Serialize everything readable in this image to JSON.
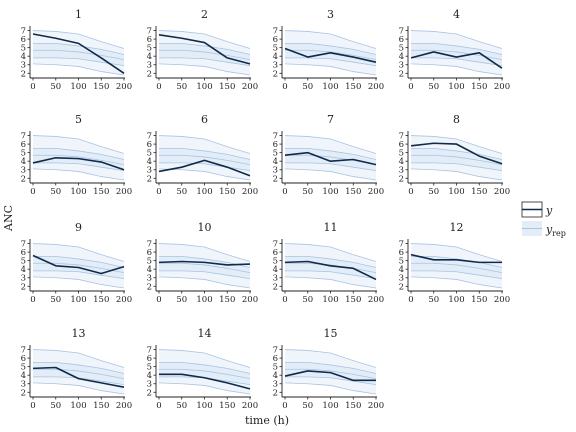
{
  "chart_data": {
    "type": "line",
    "xlabel": "time (h)",
    "ylabel": "ANC",
    "x_ticks": [
      0,
      50,
      100,
      150,
      200
    ],
    "y_ticks": [
      2,
      3,
      4,
      5,
      6,
      7
    ],
    "xlim": [
      0,
      200
    ],
    "ylim": [
      1.8,
      7.3
    ],
    "legend": {
      "position": "right",
      "y_label": "y",
      "rep_label_main": "y",
      "rep_label_sub": "rep"
    },
    "colors": {
      "y_line": "#0f2a4a",
      "band_fill": "#e3edf8",
      "band_line": "#a9c4e2",
      "axis": "#222222"
    },
    "panels": [
      {
        "id": "1",
        "times": [
          0,
          50,
          100,
          150,
          200
        ],
        "y": [
          6.6,
          6.1,
          5.5,
          3.8,
          2.0
        ]
      },
      {
        "id": "2",
        "times": [
          0,
          50,
          100,
          150,
          200
        ],
        "y": [
          6.5,
          6.1,
          5.6,
          3.8,
          3.1
        ]
      },
      {
        "id": "3",
        "times": [
          0,
          50,
          100,
          150,
          200
        ],
        "y": [
          4.9,
          3.9,
          4.4,
          3.9,
          3.3
        ]
      },
      {
        "id": "4",
        "times": [
          0,
          50,
          100,
          150,
          200
        ],
        "y": [
          3.8,
          4.5,
          3.9,
          4.4,
          2.6
        ]
      },
      {
        "id": "5",
        "times": [
          0,
          50,
          100,
          150,
          200
        ],
        "y": [
          3.8,
          4.4,
          4.3,
          3.9,
          3.0
        ]
      },
      {
        "id": "6",
        "times": [
          0,
          50,
          100,
          150,
          200
        ],
        "y": [
          2.8,
          3.3,
          4.1,
          3.3,
          2.3
        ]
      },
      {
        "id": "7",
        "times": [
          0,
          50,
          100,
          150,
          200
        ],
        "y": [
          4.7,
          5.0,
          4.0,
          4.2,
          3.6
        ]
      },
      {
        "id": "8",
        "times": [
          0,
          50,
          100,
          150,
          200
        ],
        "y": [
          5.8,
          6.1,
          6.0,
          4.6,
          3.7
        ]
      },
      {
        "id": "9",
        "times": [
          0,
          50,
          100,
          150,
          200
        ],
        "y": [
          5.6,
          4.4,
          4.2,
          3.5,
          4.3
        ]
      },
      {
        "id": "10",
        "times": [
          0,
          50,
          100,
          150,
          200
        ],
        "y": [
          4.8,
          4.9,
          4.8,
          4.5,
          4.6
        ]
      },
      {
        "id": "11",
        "times": [
          0,
          50,
          100,
          150,
          200
        ],
        "y": [
          4.8,
          4.9,
          4.4,
          4.1,
          2.8
        ]
      },
      {
        "id": "12",
        "times": [
          0,
          50,
          100,
          150,
          200
        ],
        "y": [
          5.7,
          5.1,
          5.1,
          4.8,
          4.8
        ]
      },
      {
        "id": "13",
        "times": [
          0,
          50,
          100,
          150,
          200
        ],
        "y": [
          4.8,
          4.9,
          3.6,
          3.1,
          2.6
        ]
      },
      {
        "id": "14",
        "times": [
          0,
          50,
          100,
          150,
          200
        ],
        "y": [
          4.1,
          4.1,
          3.7,
          3.1,
          2.4
        ]
      },
      {
        "id": "15",
        "times": [
          0,
          50,
          100,
          150,
          200
        ],
        "y": [
          3.9,
          4.5,
          4.3,
          3.4,
          3.4
        ]
      }
    ],
    "prediction_bands": {
      "times": [
        0,
        50,
        100,
        150,
        200
      ],
      "outer_upper": [
        7.0,
        6.9,
        6.6,
        5.7,
        4.9
      ],
      "inner_upper": [
        5.5,
        5.5,
        5.2,
        4.8,
        4.2
      ],
      "median": [
        4.7,
        4.7,
        4.5,
        4.1,
        3.6
      ],
      "inner_lower": [
        3.8,
        3.8,
        3.7,
        3.3,
        2.9
      ],
      "outer_lower": [
        3.1,
        3.0,
        2.8,
        2.2,
        1.8
      ]
    }
  }
}
